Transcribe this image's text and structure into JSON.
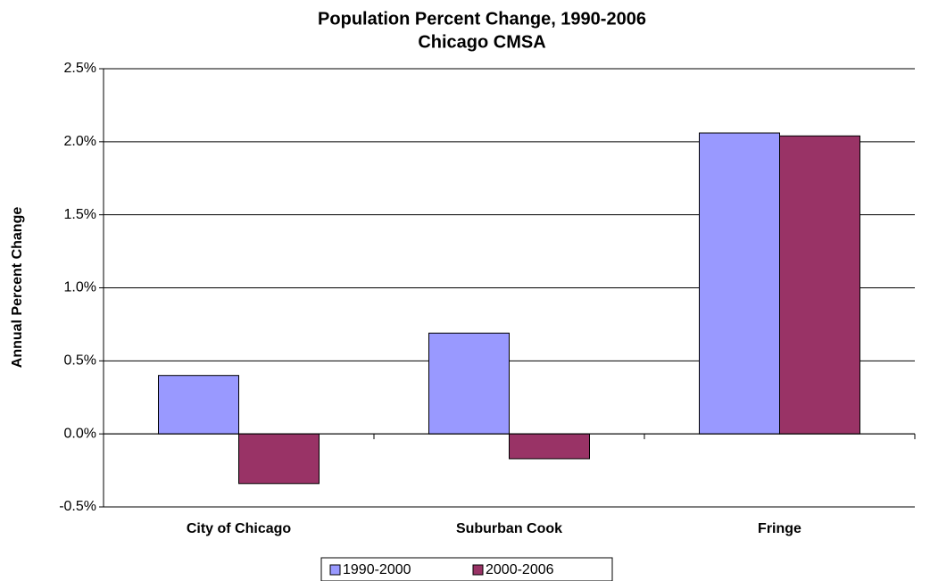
{
  "chart_data": {
    "type": "bar",
    "title": "Population Percent Change, 1990-2006",
    "subtitle": "Chicago CMSA",
    "y_label": "Annual Percent Change",
    "categories": [
      "City of Chicago",
      "Suburban Cook",
      "Fringe"
    ],
    "series": [
      {
        "name": "1990-2000",
        "color": "#9999ff",
        "values": [
          0.4,
          0.69,
          2.06
        ]
      },
      {
        "name": "2000-2006",
        "color": "#993366",
        "values": [
          -0.34,
          -0.17,
          2.04
        ]
      }
    ],
    "ylim": [
      -0.5,
      2.5
    ],
    "yticks": [
      {
        "value": -0.5,
        "label": "-0.5%"
      },
      {
        "value": 0,
        "label": "0.0%"
      },
      {
        "value": 0.5,
        "label": "0.5%"
      },
      {
        "value": 1,
        "label": "1.0%"
      },
      {
        "value": 1.5,
        "label": "1.5%"
      },
      {
        "value": 2,
        "label": "2.0%"
      },
      {
        "value": 2.5,
        "label": "2.5%"
      }
    ],
    "grid": true,
    "legend": "bottom"
  }
}
